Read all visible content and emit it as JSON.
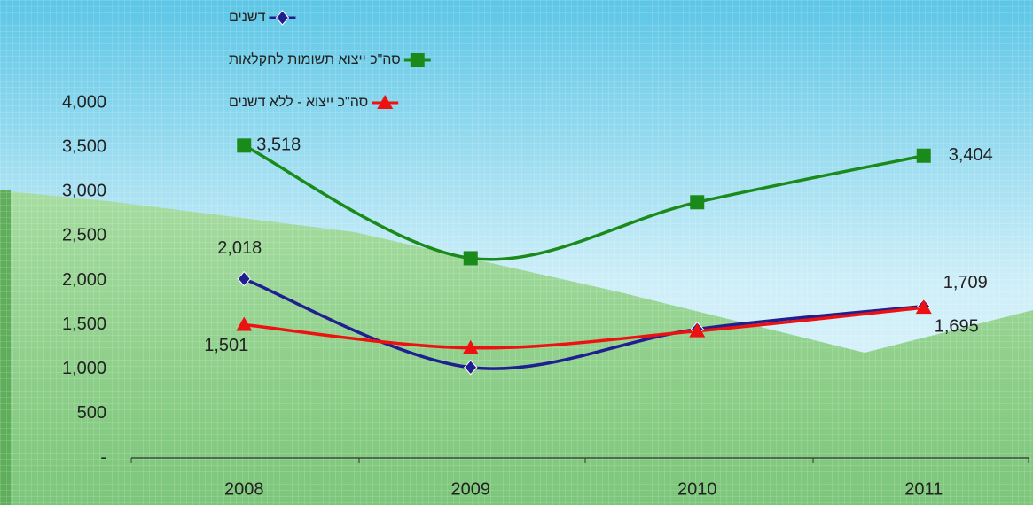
{
  "chart_data": {
    "type": "line",
    "categories": [
      "2008",
      "2009",
      "2010",
      "2011"
    ],
    "series": [
      {
        "name": "דשנים",
        "color": "#1f1f8f",
        "marker": "diamond",
        "values": [
          2018,
          1020,
          1450,
          1709
        ],
        "value_labels": [
          "2,018",
          null,
          null,
          "1,709"
        ]
      },
      {
        "name": "סה\"כ ייצוא תשומות לחקלאות",
        "color": "#1a8a1a",
        "marker": "square",
        "values": [
          3518,
          2250,
          2880,
          3404
        ],
        "value_labels": [
          "3,518",
          null,
          null,
          "3,404"
        ]
      },
      {
        "name": "סה\"כ ייצוא - ללא דשנים",
        "color": "#ee1111",
        "marker": "triangle",
        "values": [
          1501,
          1240,
          1430,
          1695
        ],
        "value_labels": [
          "1,501",
          null,
          null,
          "1,695"
        ]
      }
    ],
    "ylim": [
      0,
      4000
    ],
    "yticks": [
      {
        "value": 0,
        "label": "-"
      },
      500,
      {
        "value": 1000,
        "label": "1,000"
      },
      {
        "value": 1500,
        "label": "1,500"
      },
      {
        "value": 2000,
        "label": "2,000"
      },
      {
        "value": 2500,
        "label": "2,500"
      },
      {
        "value": 3000,
        "label": "3,000"
      },
      {
        "value": 3500,
        "label": "3,500"
      },
      {
        "value": 4000,
        "label": "4,000"
      }
    ]
  }
}
